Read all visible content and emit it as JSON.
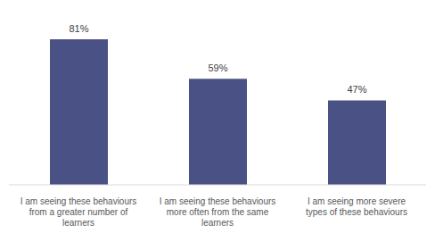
{
  "chart_data": {
    "type": "bar",
    "categories": [
      "I am seeing these behaviours from a greater number of learners",
      "I am seeing these behaviours more often from the same learners",
      "I am seeing more severe types of these behaviours"
    ],
    "values": [
      81,
      59,
      47
    ],
    "value_labels": [
      "81%",
      "59%",
      "47%"
    ],
    "color": "#4a5285",
    "ylim": [
      0,
      90
    ],
    "data_labels": true,
    "tick_labels": "x",
    "grid": false
  }
}
